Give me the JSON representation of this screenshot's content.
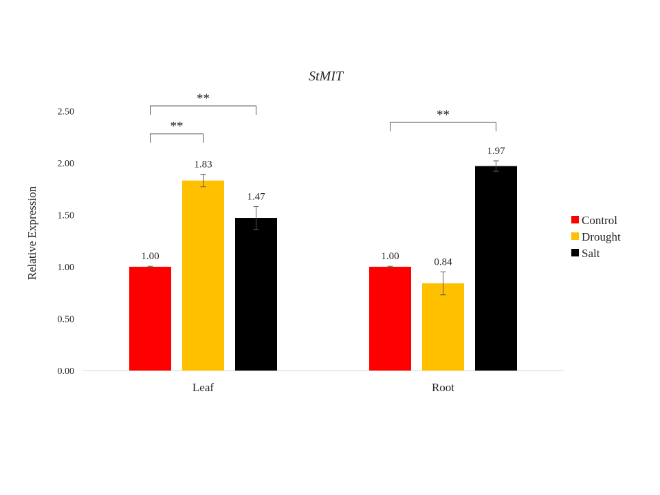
{
  "chart_data": {
    "type": "bar",
    "title": "StMIT",
    "xlabel": "",
    "ylabel": "Relative Expression",
    "ylim": [
      0,
      2.5
    ],
    "yticks": [
      "0.00",
      "0.50",
      "1.00",
      "1.50",
      "2.00",
      "2.50"
    ],
    "ytick_values": [
      0,
      0.5,
      1.0,
      1.5,
      2.0,
      2.5
    ],
    "grid": false,
    "legend_position": "right",
    "categories": [
      "Leaf",
      "Root"
    ],
    "series": [
      {
        "name": "Control",
        "color": "#ff0000",
        "values": [
          1.0,
          1.0
        ],
        "errors": [
          0.005,
          0.005
        ],
        "labels": [
          "1.00",
          "1.00"
        ]
      },
      {
        "name": "Drought",
        "color": "#ffc000",
        "values": [
          1.83,
          0.84
        ],
        "errors": [
          0.06,
          0.11
        ],
        "labels": [
          "1.83",
          "0.84"
        ]
      },
      {
        "name": "Salt",
        "color": "#000000",
        "values": [
          1.47,
          1.97
        ],
        "errors": [
          0.11,
          0.05
        ],
        "labels": [
          "1.47",
          "1.97"
        ]
      }
    ],
    "significance": [
      {
        "category": 0,
        "from_series": 0,
        "to_series": 1,
        "label": "**",
        "level": 2.28
      },
      {
        "category": 0,
        "from_series": 0,
        "to_series": 2,
        "label": "**",
        "level": 2.55
      },
      {
        "category": 1,
        "from_series": 0,
        "to_series": 2,
        "label": "**",
        "level": 2.39
      }
    ]
  }
}
